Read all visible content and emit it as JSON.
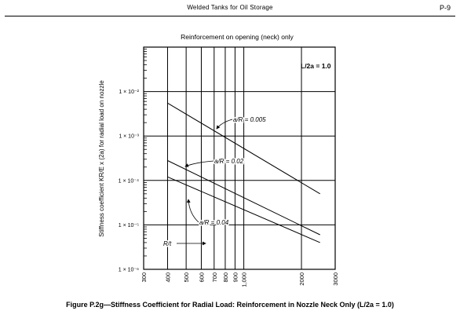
{
  "page": {
    "header_title": "Welded Tanks for Oil Storage",
    "page_number": "P-9",
    "caption": "Figure  P.2g—Stiffness Coefficient for Radial Load: Reinforcement in Nozzle Neck Only (L/2a = 1.0)"
  },
  "chart_data": {
    "type": "line",
    "title": "Reinforcement on opening (neck) only",
    "xlabel": "R/t",
    "ylabel": "Stiffness coefficient KR/E x (2a) for radial load on nozzle",
    "x_scale": "log",
    "y_scale": "log",
    "xlim": [
      300,
      3000
    ],
    "ylim": [
      1e-06,
      0.1
    ],
    "x_ticks": [
      {
        "value": 300,
        "label": "300"
      },
      {
        "value": 400,
        "label": "400"
      },
      {
        "value": 500,
        "label": "500"
      },
      {
        "value": 600,
        "label": "600"
      },
      {
        "value": 700,
        "label": "700"
      },
      {
        "value": 800,
        "label": "800"
      },
      {
        "value": 900,
        "label": "900"
      },
      {
        "value": 1000,
        "label": "1,000"
      },
      {
        "value": 2000,
        "label": "2000"
      },
      {
        "value": 3000,
        "label": "3000"
      }
    ],
    "y_ticks": [
      {
        "value": 1e-06,
        "label": "1 × 10⁻⁶"
      },
      {
        "value": 1e-05,
        "label": "1 × 10⁻⁵"
      },
      {
        "value": 0.0001,
        "label": "1 × 10⁻⁴"
      },
      {
        "value": 0.001,
        "label": "1 × 10⁻³"
      },
      {
        "value": 0.01,
        "label": "1 × 10⁻²"
      }
    ],
    "grid": true,
    "parameter_note": "L/2a = 1.0",
    "series": [
      {
        "name": "a/R = 0.005",
        "x": [
          400,
          2500
        ],
        "y": [
          0.0055,
          5e-05
        ]
      },
      {
        "name": "a/R = 0.02",
        "x": [
          400,
          2500
        ],
        "y": [
          0.00028,
          6e-06
        ]
      },
      {
        "name": "a/R = 0.04",
        "x": [
          400,
          2500
        ],
        "y": [
          0.00012,
          4e-06
        ]
      }
    ]
  }
}
